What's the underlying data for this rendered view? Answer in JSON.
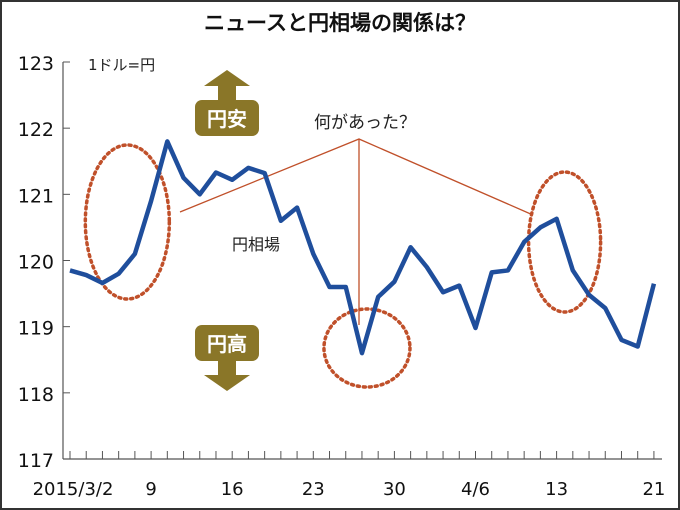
{
  "chart_data": {
    "type": "line",
    "title": "ニュースと円相場の関係は？",
    "unit_label": "1ドル=円",
    "series_label": "円相場",
    "question_label": "何があった？",
    "up_label": "円安",
    "down_label": "円高",
    "ylim": [
      117,
      123
    ],
    "yticks": [
      "117",
      "118",
      "119",
      "120",
      "121",
      "122",
      "123"
    ],
    "xtick_labels": [
      {
        "index": 0,
        "label": "2015/3/2"
      },
      {
        "index": 5,
        "label": "9"
      },
      {
        "index": 10,
        "label": "16"
      },
      {
        "index": 15,
        "label": "23"
      },
      {
        "index": 20,
        "label": "30"
      },
      {
        "index": 25,
        "label": "4/6"
      },
      {
        "index": 30,
        "label": "13"
      },
      {
        "index": 36,
        "label": "21"
      }
    ],
    "series": [
      {
        "name": "円相場",
        "color": "#1f4e9c",
        "values": [
          119.85,
          119.78,
          119.66,
          119.8,
          120.1,
          120.9,
          121.8,
          121.25,
          121.0,
          121.33,
          121.22,
          121.4,
          121.32,
          120.6,
          120.8,
          120.1,
          119.6,
          119.6,
          118.6,
          119.45,
          119.68,
          120.2,
          119.9,
          119.52,
          119.62,
          118.98,
          119.82,
          119.85,
          120.28,
          120.5,
          120.63,
          119.85,
          119.48,
          119.28,
          118.8,
          118.7,
          119.65
        ]
      }
    ],
    "highlight_indices": [
      6,
      18,
      30
    ],
    "annotation_color": "#c0502a",
    "arrow_color": "#8a7628"
  }
}
